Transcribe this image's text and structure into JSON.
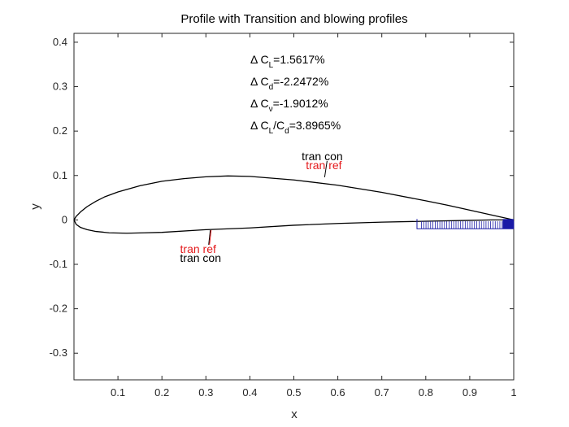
{
  "chart_data": {
    "type": "line",
    "title": "Profile with Transition and blowing profiles",
    "xlabel": "x",
    "ylabel": "y",
    "xlim": [
      0,
      1
    ],
    "ylim": [
      -0.36,
      0.42
    ],
    "xticks": [
      "0.1",
      "0.2",
      "0.3",
      "0.4",
      "0.5",
      "0.6",
      "0.7",
      "0.8",
      "0.9",
      "1"
    ],
    "yticks": [
      "-0.3",
      "-0.2",
      "-0.1",
      "0",
      "0.1",
      "0.2",
      "0.3",
      "0.4"
    ],
    "grid": false,
    "series": [
      {
        "color": "#000000",
        "x": [
          1.0,
          0.95,
          0.9,
          0.85,
          0.8,
          0.7,
          0.6,
          0.5,
          0.4,
          0.35,
          0.3,
          0.25,
          0.2,
          0.15,
          0.1,
          0.07,
          0.05,
          0.03,
          0.015,
          0.005,
          0.0,
          0.005,
          0.015,
          0.03,
          0.05,
          0.08,
          0.12,
          0.16,
          0.2,
          0.3,
          0.4,
          0.5,
          0.6,
          0.7,
          0.8,
          0.9,
          0.95,
          1.0
        ],
        "y": [
          0.0,
          0.011,
          0.022,
          0.033,
          0.043,
          0.062,
          0.078,
          0.09,
          0.098,
          0.099,
          0.097,
          0.093,
          0.087,
          0.077,
          0.063,
          0.052,
          0.042,
          0.03,
          0.018,
          0.008,
          0.0,
          -0.01,
          -0.017,
          -0.022,
          -0.026,
          -0.029,
          -0.03,
          -0.029,
          -0.028,
          -0.022,
          -0.018,
          -0.012,
          -0.008,
          -0.005,
          -0.003,
          -0.001,
          0.0,
          0.0
        ]
      },
      {
        "name": "blowing",
        "color": "#1a1aa6",
        "x_start": 0.78,
        "x_end": 1.0,
        "depth": 0.02
      }
    ],
    "annotations": [
      {
        "label": "Δ C",
        "sub": "L",
        "rest": "=1.5617%"
      },
      {
        "label": "Δ C",
        "sub": "d",
        "rest": "=-2.2472%"
      },
      {
        "label": "Δ C",
        "sub": "ν",
        "rest": "=-1.9012%"
      },
      {
        "label": "Δ C",
        "sub": "L",
        "mid": "/C",
        "sub2": "d",
        "rest": "=3.8965%"
      }
    ],
    "transition_markers": [
      {
        "surface": "upper",
        "x": 0.57,
        "y": 0.096,
        "con_label": "tran con",
        "ref_label": "tran ref",
        "con_color": "#000000",
        "ref_color": "#e41a1c"
      },
      {
        "surface": "lower",
        "x": 0.31,
        "y": -0.023,
        "con_label": "tran con",
        "ref_label": "tran ref",
        "con_color": "#000000",
        "ref_color": "#e41a1c"
      }
    ]
  }
}
